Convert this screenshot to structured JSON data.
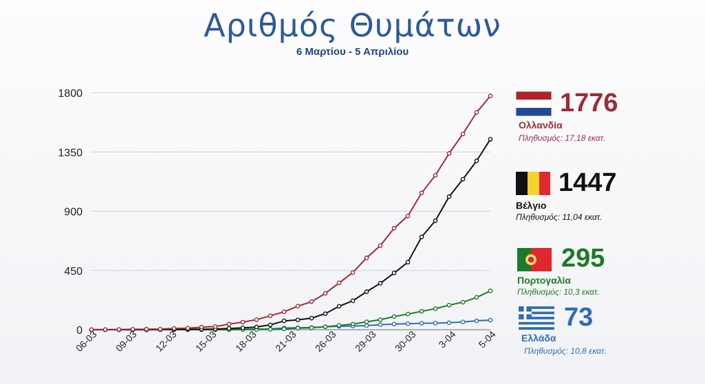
{
  "title": "Αριθμός Θυμάτων",
  "subtitle": "6 Μαρτίου - 5 Απριλίου",
  "colors": {
    "netherlands": "#9e2b35",
    "belgium": "#111111",
    "portugal": "#1d7a24",
    "greece": "#2f6db5"
  },
  "legend": [
    {
      "key": "netherlands",
      "value": "1776",
      "country": "Ολλανδία",
      "population": "Πληθυσμός: 17,18 εκατ.",
      "flag_icon": "netherlands-flag-icon"
    },
    {
      "key": "belgium",
      "value": "1447",
      "country": "Βέλγιο",
      "population": "Πληθυσμός: 11,04 εκατ.",
      "flag_icon": "belgium-flag-icon"
    },
    {
      "key": "portugal",
      "value": "295",
      "country": "Πορτογαλία",
      "population": "Πληθυσμός: 10,3 εκατ.",
      "flag_icon": "portugal-flag-icon"
    },
    {
      "key": "greece",
      "value": "73",
      "country": "Ελλάδα",
      "population": "Πληθυσμός: 10,8 εκατ.",
      "flag_icon": "greece-flag-icon"
    }
  ],
  "chart_data": {
    "type": "line",
    "title": "Αριθμός Θυμάτων",
    "subtitle": "6 Μαρτίου - 5 Απριλίου",
    "xlabel": "",
    "ylabel": "",
    "ylim": [
      0,
      1800
    ],
    "yticks": [
      "0",
      "450",
      "900",
      "1350",
      "1800"
    ],
    "xticks": [
      "06-03",
      "09-03",
      "12-03",
      "15-03",
      "18-03",
      "21-03",
      "26-03",
      "29-03",
      "30-03",
      "3-04",
      "5-04"
    ],
    "grid": "horizontal",
    "legend_position": "right",
    "series": [
      {
        "name": "Ολλανδία",
        "key": "netherlands",
        "values": [
          1,
          1,
          2,
          3,
          4,
          5,
          10,
          12,
          20,
          24,
          43,
          58,
          76,
          106,
          136,
          179,
          213,
          276,
          356,
          434,
          546,
          639,
          771,
          864,
          1039,
          1173,
          1339,
          1487,
          1651,
          1776
        ]
      },
      {
        "name": "Βέλγιο",
        "key": "belgium",
        "values": [
          0,
          0,
          0,
          0,
          0,
          3,
          3,
          4,
          4,
          5,
          10,
          14,
          21,
          37,
          67,
          75,
          88,
          122,
          178,
          220,
          289,
          353,
          431,
          513,
          705,
          828,
          1011,
          1143,
          1283,
          1447
        ]
      },
      {
        "name": "Πορτογαλία",
        "key": "portugal",
        "values": [
          0,
          0,
          0,
          0,
          0,
          0,
          0,
          0,
          0,
          0,
          0,
          1,
          2,
          3,
          6,
          12,
          14,
          23,
          33,
          43,
          60,
          76,
          100,
          119,
          140,
          160,
          187,
          209,
          246,
          295
        ]
      },
      {
        "name": "Ελλάδα",
        "key": "greece",
        "values": [
          0,
          0,
          0,
          0,
          0,
          1,
          1,
          1,
          1,
          3,
          3,
          4,
          5,
          6,
          13,
          15,
          17,
          22,
          26,
          28,
          32,
          38,
          43,
          46,
          49,
          50,
          53,
          59,
          68,
          73
        ]
      }
    ]
  }
}
